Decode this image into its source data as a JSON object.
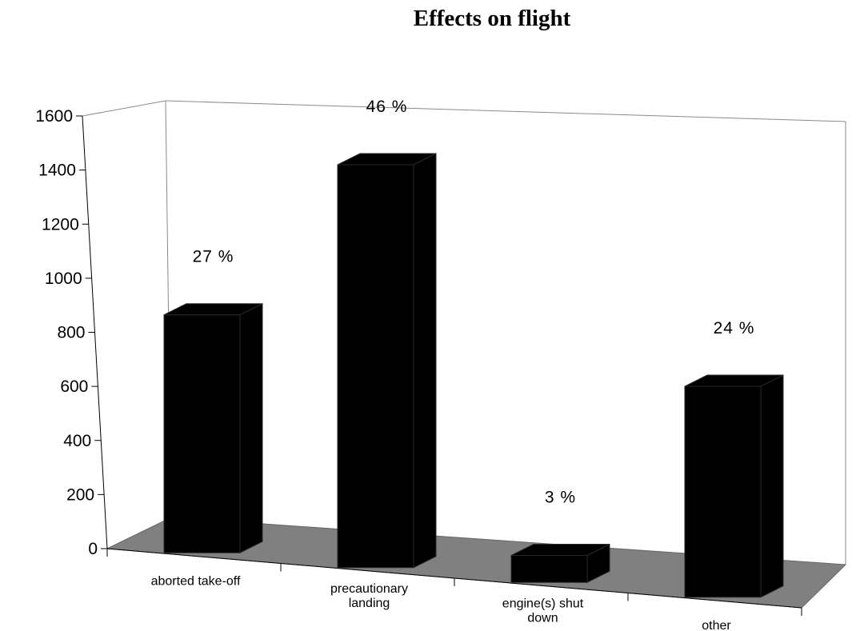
{
  "chart_data": {
    "type": "bar",
    "title": "Effects on flight",
    "xlabel": "",
    "ylabel": "",
    "categories": [
      [
        "aborted take-off"
      ],
      [
        "precautionary",
        "landing"
      ],
      [
        "engine(s) shut",
        "down"
      ],
      [
        "other"
      ]
    ],
    "values": [
      880,
      1490,
      100,
      780
    ],
    "data_labels": [
      "27 %",
      "46 %",
      "3 %",
      "24 %"
    ],
    "ylim": [
      0,
      1600
    ],
    "yticks": [
      "0",
      "200",
      "400",
      "600",
      "800",
      "1000",
      "1200",
      "1400",
      "1600"
    ],
    "style": "3d-column",
    "bar_color": "#000000",
    "floor_color": "#808080",
    "grid": false,
    "legend": "none"
  }
}
